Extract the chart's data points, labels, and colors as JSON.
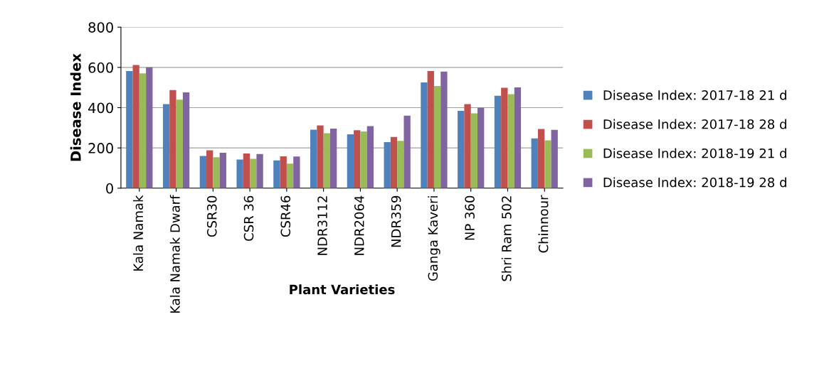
{
  "chart_data": {
    "type": "bar",
    "xlabel": "Plant Varieties",
    "ylabel": "Disease Index",
    "categories": [
      "Kala Namak",
      "Kala Namak Dwarf",
      "CSR30",
      "CSR 36",
      "CSR46",
      "NDR3112",
      "NDR2064",
      "NDR359",
      "Ganga Kaveri",
      "NP 360",
      "Shri Ram 502",
      "Chinnour"
    ],
    "series": [
      {
        "name": "Disease Index: 2017-18 21 d",
        "color": "#4f81bd",
        "values": [
          582,
          418,
          160,
          142,
          138,
          291,
          268,
          229,
          525,
          384,
          459,
          247
        ]
      },
      {
        "name": "Disease Index: 2017-18 28 d",
        "color": "#c0504d",
        "values": [
          612,
          487,
          188,
          172,
          158,
          312,
          288,
          254,
          582,
          418,
          499,
          294
        ]
      },
      {
        "name": "Disease Index: 2018-19 21 d",
        "color": "#9bbb59",
        "values": [
          570,
          440,
          154,
          146,
          122,
          273,
          282,
          235,
          508,
          372,
          467,
          238
        ]
      },
      {
        "name": "Disease Index: 2018-19 28 d",
        "color": "#8064a2",
        "values": [
          600,
          476,
          176,
          170,
          157,
          296,
          308,
          360,
          579,
          400,
          501,
          290
        ]
      }
    ],
    "ylim": [
      0,
      800
    ],
    "yticks": [
      0,
      200,
      400,
      600,
      800
    ],
    "grid": "y",
    "legend": "right"
  }
}
